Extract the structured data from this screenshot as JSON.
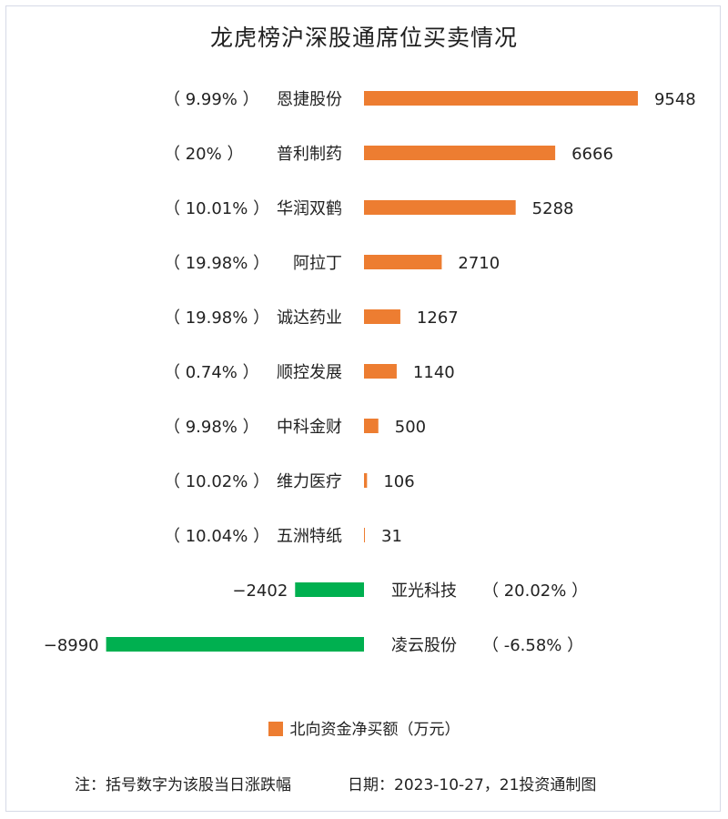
{
  "chart_data": {
    "type": "bar",
    "orientation": "horizontal",
    "title": "龙虎榜沪深股通席位买卖情况",
    "categories": [
      "恩捷股份",
      "普利制药",
      "华润双鹤",
      "阿拉丁",
      "诚达药业",
      "顺控发展",
      "中科金财",
      "维力医疗",
      "五洲特纸",
      "亚光科技",
      "凌云股份"
    ],
    "pct_labels": [
      "（ 9.99% ）",
      "（ 20% ）",
      "（ 10.01% ）",
      "（ 19.98% ）",
      "（ 19.98% ）",
      "（ 0.74% ）",
      "（ 9.98% ）",
      "（ 10.02% ）",
      "（ 10.04% ）",
      "（ 20.02% ）",
      "（ -6.58% ）"
    ],
    "series": [
      {
        "name": "北向资金净买额（万元）",
        "values": [
          9548,
          6666,
          5288,
          2710,
          1267,
          1140,
          500,
          106,
          31,
          -2402,
          -8990
        ]
      }
    ],
    "positive_color": "#ed7d31",
    "negative_color": "#00b050",
    "legend": {
      "label": "北向资金净买额（万元）",
      "position": "bottom-center"
    }
  },
  "footer": {
    "note": "注：括号数字为该股当日涨跌幅",
    "date_source": "日期：2023-10-27，21投资通制图"
  }
}
